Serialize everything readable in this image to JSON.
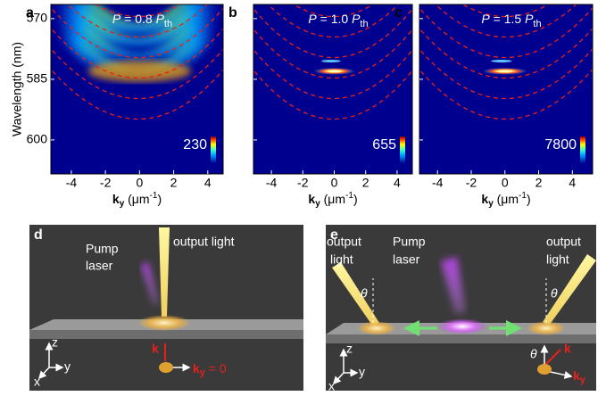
{
  "chart_data": [
    {
      "type": "heatmap",
      "letter": "a",
      "title": {
        "var": "P",
        "text": " = 0.8 ",
        "sub": "th"
      },
      "xlabel": [
        "k",
        "y",
        " (μm",
        "-1",
        ")"
      ],
      "ylabel": "Wavelength (nm)",
      "xlim": [
        -5.2,
        4.9
      ],
      "xticks": [
        -4,
        -2,
        0,
        2,
        4
      ],
      "ylim": [
        608.4,
        566.5
      ],
      "yticks": [
        570,
        585,
        600
      ],
      "ytick_labels": true,
      "colorbar_max": "230",
      "condensate": false
    },
    {
      "type": "heatmap",
      "letter": "b",
      "title": {
        "var": "P",
        "text": " = 1.0 ",
        "sub": "th"
      },
      "xlabel": [
        "k",
        "y",
        " (μm",
        "-1",
        ")"
      ],
      "xlim": [
        -5.14,
        4.97
      ],
      "xticks": [
        -4,
        -2,
        0,
        2,
        4
      ],
      "ylim": [
        608.4,
        566.5
      ],
      "yticks": [
        570,
        585,
        600
      ],
      "ytick_labels": false,
      "colorbar_max": "655",
      "condensate": true
    },
    {
      "type": "heatmap",
      "letter": "c",
      "title": {
        "var": "P",
        "text": " = 1.5 ",
        "sub": "th"
      },
      "xlabel": [
        "k",
        "y",
        " (μm",
        "-1",
        ")"
      ],
      "xlim": [
        -5.07,
        5.2
      ],
      "xticks": [
        -4,
        -2,
        0,
        2,
        4
      ],
      "ylim": [
        608.4,
        566.5
      ],
      "yticks": [
        570,
        585,
        600
      ],
      "ytick_labels": false,
      "colorbar_max": "7800",
      "condensate": true
    }
  ],
  "panel_d": {
    "letter": "d",
    "pump": [
      "Pump",
      "laser"
    ],
    "output": "output light",
    "axes": [
      "z",
      "y",
      "x"
    ],
    "k": "k",
    "ky": [
      "k",
      "y",
      " = 0"
    ]
  },
  "panel_e": {
    "letter": "e",
    "output_left": [
      "output",
      "light"
    ],
    "pump": [
      "Pump",
      "laser"
    ],
    "output_right": [
      "output",
      "light"
    ],
    "theta": "θ",
    "axes": [
      "z",
      "y",
      "x"
    ],
    "k": "k",
    "ky": [
      "k",
      "y"
    ]
  }
}
